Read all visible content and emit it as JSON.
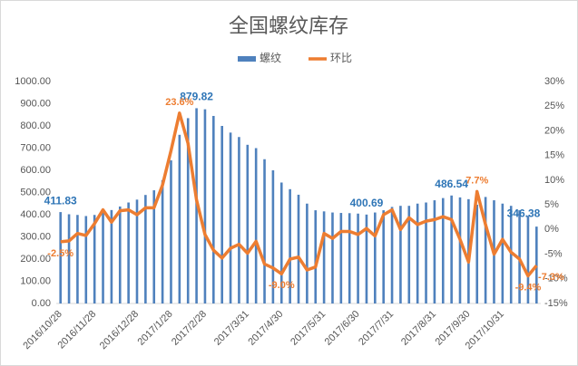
{
  "chart_data": {
    "type": "bar_line",
    "title": "全国螺纹库存",
    "categories": [
      "2016/10/28",
      null,
      null,
      null,
      "2016/11/28",
      null,
      null,
      null,
      null,
      "2016/12/28",
      null,
      null,
      null,
      "2017/1/28",
      null,
      null,
      null,
      "2017/2/28",
      null,
      null,
      null,
      null,
      "2017/3/31",
      null,
      null,
      null,
      "2017/4/30",
      null,
      null,
      null,
      null,
      "2017/5/31",
      null,
      null,
      null,
      "2017/6/30",
      null,
      null,
      null,
      "2017/7/31",
      null,
      null,
      null,
      null,
      "2017/8/31",
      null,
      null,
      null,
      "2017/9/30",
      null,
      null,
      null,
      "2017/10/31",
      null,
      null,
      null,
      null
    ],
    "series": [
      {
        "name": "螺纹",
        "type": "bar",
        "color": "#4f81bd",
        "values": [
          411.83,
          402,
          399,
          394,
          399,
          415,
          421,
          437,
          455,
          468,
          489,
          510,
          556,
          645,
          760,
          835,
          879.82,
          875,
          845,
          800,
          770,
          750,
          715,
          700,
          650,
          600,
          545,
          515,
          490,
          450,
          420,
          415,
          410,
          408,
          407,
          405,
          400.69,
          410,
          420,
          435,
          440,
          440,
          450,
          455,
          465,
          475,
          486.54,
          478,
          470,
          445,
          480,
          465,
          450,
          440,
          420,
          395,
          346.38
        ],
        "value_labels": [
          "411.83",
          null,
          null,
          null,
          null,
          null,
          null,
          null,
          null,
          null,
          null,
          null,
          null,
          null,
          null,
          null,
          "879.82",
          null,
          null,
          null,
          null,
          null,
          null,
          null,
          null,
          null,
          null,
          null,
          null,
          null,
          null,
          null,
          null,
          null,
          null,
          null,
          "400.69",
          null,
          null,
          null,
          null,
          null,
          null,
          null,
          null,
          null,
          "486.54",
          null,
          null,
          null,
          null,
          null,
          null,
          null,
          null,
          null,
          "346.38"
        ]
      },
      {
        "name": "环比",
        "type": "line",
        "axis": "y2",
        "color": "#ed7d31",
        "values": [
          -2.5,
          -2.3,
          -0.8,
          -1.2,
          1.2,
          4.0,
          1.5,
          3.8,
          4.0,
          3.0,
          4.4,
          4.4,
          9.0,
          16.0,
          23.6,
          17.5,
          6.0,
          -1.0,
          -4.2,
          -5.8,
          -3.8,
          -3.0,
          -4.8,
          -2.4,
          -7.0,
          -7.8,
          -9.0,
          -6.0,
          -5.6,
          -8.2,
          -7.6,
          -0.8,
          -1.8,
          -0.4,
          -0.4,
          -1.0,
          0.2,
          -1.3,
          3.0,
          4.0,
          0.0,
          2.4,
          1.0,
          1.7,
          2.0,
          2.6,
          2.0,
          -2.0,
          -6.6,
          7.7,
          1.0,
          -5.0,
          -2.0,
          -4.6,
          -6.0,
          -9.4,
          -7.3
        ],
        "value_labels": [
          "-2.5%",
          null,
          null,
          null,
          null,
          null,
          null,
          null,
          null,
          null,
          null,
          null,
          null,
          null,
          "23.6%",
          null,
          null,
          null,
          null,
          null,
          null,
          null,
          null,
          null,
          null,
          null,
          "-9.0%",
          null,
          null,
          null,
          null,
          null,
          null,
          null,
          null,
          null,
          null,
          null,
          null,
          null,
          null,
          null,
          null,
          null,
          null,
          null,
          null,
          null,
          null,
          "7.7%",
          null,
          null,
          null,
          null,
          null,
          "-9.4%",
          "-7.3%"
        ]
      }
    ],
    "ylim": [
      0,
      1000
    ],
    "yticks": [
      {
        "value": 0,
        "label": "0.00"
      },
      {
        "value": 100,
        "label": "100.00"
      },
      {
        "value": 200,
        "label": "200.00"
      },
      {
        "value": 300,
        "label": "300.00"
      },
      {
        "value": 400,
        "label": "400.00"
      },
      {
        "value": 500,
        "label": "500.00"
      },
      {
        "value": 600,
        "label": "600.00"
      },
      {
        "value": 700,
        "label": "700.00"
      },
      {
        "value": 800,
        "label": "800.00"
      },
      {
        "value": 900,
        "label": "900.00"
      },
      {
        "value": 1000,
        "label": "1000.00"
      }
    ],
    "y2lim": [
      -15,
      30
    ],
    "y2ticks": [
      {
        "value": -15,
        "label": "-15%"
      },
      {
        "value": -10,
        "label": "-10%"
      },
      {
        "value": -5,
        "label": "-5%"
      },
      {
        "value": 0,
        "label": "0%"
      },
      {
        "value": 5,
        "label": "5%"
      },
      {
        "value": 10,
        "label": "10%"
      },
      {
        "value": 15,
        "label": "15%"
      },
      {
        "value": 20,
        "label": "20%"
      },
      {
        "value": 25,
        "label": "25%"
      },
      {
        "value": 30,
        "label": "30%"
      }
    ],
    "legend": "top",
    "grid": false
  }
}
